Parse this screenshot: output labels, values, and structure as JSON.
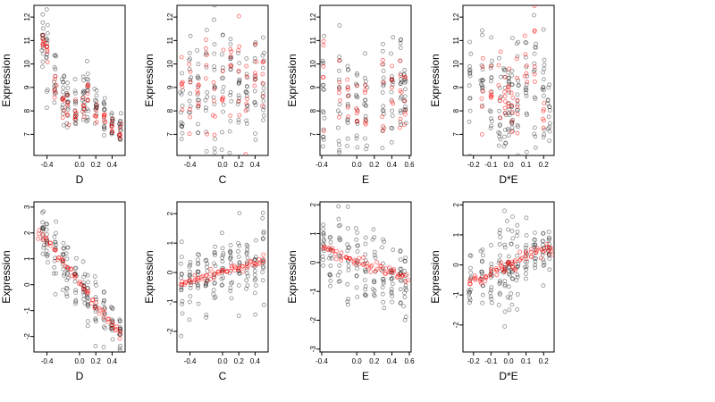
{
  "chart_data": [
    {
      "type": "scatter",
      "xlabel": "D",
      "ylabel": "Expression",
      "xlim": [
        -0.56,
        0.56
      ],
      "ylim": [
        6.1,
        12.5
      ],
      "xticks": [
        -0.4,
        0.0,
        0.2,
        0.4
      ],
      "yticks": [
        7,
        8,
        9,
        10,
        11,
        12
      ],
      "observed": {
        "x_groups": [
          -0.45,
          -0.4,
          -0.3,
          -0.2,
          -0.15,
          -0.05,
          0.05,
          0.1,
          0.2,
          0.3,
          0.4,
          0.5
        ],
        "y_means": [
          11.0,
          10.5,
          9.3,
          8.6,
          8.2,
          8.1,
          8.3,
          8.6,
          8.3,
          7.8,
          7.5,
          7.3
        ],
        "y_sd": [
          0.8,
          0.9,
          0.7,
          0.6,
          0.6,
          0.5,
          0.6,
          0.7,
          0.6,
          0.5,
          0.4,
          0.4
        ],
        "n_per_group": 14
      },
      "fitted": {
        "x_groups": [
          -0.45,
          -0.4,
          -0.3,
          -0.2,
          -0.15,
          -0.05,
          0.05,
          0.1,
          0.2,
          0.3,
          0.4,
          0.5
        ],
        "y_means": [
          11.0,
          10.6,
          9.2,
          8.4,
          8.0,
          7.8,
          8.2,
          8.8,
          8.0,
          7.6,
          7.3,
          7.1
        ],
        "y_sd": [
          0.25,
          0.25,
          0.3,
          0.3,
          0.3,
          0.3,
          0.3,
          0.35,
          0.3,
          0.25,
          0.2,
          0.2
        ],
        "n_per_group": 6
      }
    },
    {
      "type": "scatter",
      "xlabel": "C",
      "ylabel": "Expression",
      "xlim": [
        -0.56,
        0.56
      ],
      "ylim": [
        6.1,
        12.5
      ],
      "xticks": [
        -0.4,
        0.0,
        0.2,
        0.4
      ],
      "yticks": [
        7,
        8,
        9,
        10,
        11,
        12
      ],
      "observed": {
        "x_groups": [
          -0.5,
          -0.4,
          -0.3,
          -0.2,
          -0.1,
          0.0,
          0.1,
          0.2,
          0.3,
          0.4,
          0.5
        ],
        "y_means": [
          8.5,
          8.4,
          8.8,
          8.6,
          9.0,
          8.7,
          8.8,
          9.2,
          8.9,
          9.1,
          8.6
        ],
        "y_sd": [
          1.2,
          1.2,
          1.4,
          1.3,
          1.5,
          1.3,
          1.4,
          1.5,
          1.3,
          1.4,
          1.2
        ],
        "n_per_group": 14
      },
      "fitted": {
        "x_groups": [
          -0.5,
          -0.4,
          -0.3,
          -0.2,
          -0.1,
          0.0,
          0.1,
          0.2,
          0.3,
          0.4,
          0.5
        ],
        "y_means": [
          8.4,
          8.5,
          8.6,
          8.7,
          8.8,
          8.9,
          9.0,
          9.1,
          9.2,
          9.3,
          9.4
        ],
        "y_sd": [
          1.0,
          1.0,
          1.1,
          1.1,
          1.1,
          1.2,
          1.2,
          1.2,
          1.2,
          1.2,
          1.2
        ],
        "n_per_group": 6
      }
    },
    {
      "type": "scatter",
      "xlabel": "E",
      "ylabel": "Expression",
      "xlim": [
        -0.42,
        0.62
      ],
      "ylim": [
        6.1,
        12.5
      ],
      "xticks": [
        -0.4,
        0.0,
        0.2,
        0.4,
        0.6
      ],
      "yticks": [
        7,
        8,
        9,
        10,
        11,
        12
      ],
      "observed": {
        "x_groups": [
          -0.38,
          -0.2,
          -0.1,
          0.0,
          0.1,
          0.3,
          0.4,
          0.5,
          0.55
        ],
        "y_means": [
          8.7,
          8.3,
          8.1,
          8.0,
          8.2,
          8.6,
          8.7,
          8.9,
          8.4
        ],
        "y_sd": [
          1.3,
          1.4,
          1.2,
          1.0,
          1.0,
          1.3,
          1.2,
          1.3,
          1.0
        ],
        "n_per_group": 16
      },
      "fitted": {
        "x_groups": [
          -0.38,
          -0.2,
          -0.1,
          0.0,
          0.1,
          0.3,
          0.4,
          0.5,
          0.55
        ],
        "y_means": [
          9.5,
          9.0,
          8.4,
          8.0,
          8.2,
          8.8,
          9.0,
          9.2,
          8.6
        ],
        "y_sd": [
          1.3,
          1.3,
          1.1,
          0.8,
          0.9,
          1.1,
          1.1,
          1.2,
          0.9
        ],
        "n_per_group": 6
      }
    },
    {
      "type": "scatter",
      "xlabel": "D*E",
      "ylabel": "Expression",
      "xlim": [
        -0.26,
        0.26
      ],
      "ylim": [
        6.1,
        12.5
      ],
      "xticks": [
        -0.2,
        -0.1,
        0.0,
        0.1,
        0.2
      ],
      "yticks": [
        7,
        8,
        9,
        10,
        11,
        12
      ],
      "observed": {
        "x_groups": [
          -0.22,
          -0.15,
          -0.1,
          -0.05,
          -0.02,
          0.0,
          0.02,
          0.05,
          0.1,
          0.15,
          0.2,
          0.23
        ],
        "y_means": [
          9.5,
          9.0,
          8.8,
          8.5,
          8.4,
          8.2,
          8.3,
          8.6,
          8.8,
          9.2,
          9.0,
          8.0
        ],
        "y_sd": [
          1.2,
          1.3,
          1.3,
          1.2,
          1.3,
          1.1,
          1.2,
          1.3,
          1.4,
          1.5,
          1.4,
          0.8
        ],
        "n_per_group": 14
      },
      "fitted": {
        "x_groups": [
          -0.15,
          -0.1,
          -0.05,
          -0.02,
          0.0,
          0.02,
          0.05,
          0.1,
          0.15,
          0.2
        ],
        "y_means": [
          9.0,
          8.9,
          8.7,
          8.6,
          8.3,
          8.1,
          8.6,
          9.3,
          10.0,
          7.6
        ],
        "y_sd": [
          0.9,
          1.0,
          0.9,
          0.8,
          0.7,
          0.7,
          1.0,
          1.3,
          1.3,
          0.4
        ],
        "n_per_group": 6
      }
    },
    {
      "type": "scatter",
      "xlabel": "D",
      "ylabel": "Expression",
      "xlim": [
        -0.56,
        0.56
      ],
      "ylim": [
        -2.6,
        3.2
      ],
      "xticks": [
        -0.4,
        0.0,
        0.2,
        0.4
      ],
      "yticks": [
        -2,
        -1,
        0,
        1,
        2,
        3
      ],
      "observed": {
        "x_groups": [
          -0.45,
          -0.4,
          -0.3,
          -0.2,
          -0.15,
          -0.05,
          0.05,
          0.1,
          0.2,
          0.3,
          0.4,
          0.5
        ],
        "y_means": [
          2.0,
          1.7,
          1.2,
          0.9,
          0.6,
          0.2,
          -0.2,
          -0.4,
          -0.8,
          -1.1,
          -1.5,
          -1.9
        ],
        "y_sd": [
          0.5,
          0.6,
          0.6,
          0.5,
          0.5,
          0.5,
          0.5,
          0.5,
          0.5,
          0.5,
          0.4,
          0.4
        ],
        "n_per_group": 14
      },
      "fitted": {
        "x_groups": [
          -0.5,
          -0.45,
          -0.4,
          -0.35,
          -0.3,
          -0.25,
          -0.2,
          -0.15,
          -0.1,
          -0.05,
          0.0,
          0.05,
          0.1,
          0.15,
          0.2,
          0.25,
          0.3,
          0.35,
          0.4,
          0.45,
          0.5
        ],
        "y_means": [
          2.0,
          1.85,
          1.65,
          1.5,
          1.3,
          1.1,
          0.9,
          0.7,
          0.5,
          0.3,
          0.1,
          -0.15,
          -0.35,
          -0.55,
          -0.75,
          -0.95,
          -1.15,
          -1.35,
          -1.55,
          -1.75,
          -1.95
        ],
        "y_sd": [
          0.08,
          0.08,
          0.08,
          0.08,
          0.08,
          0.08,
          0.08,
          0.08,
          0.08,
          0.08,
          0.08,
          0.08,
          0.08,
          0.08,
          0.08,
          0.08,
          0.08,
          0.08,
          0.08,
          0.08,
          0.08
        ],
        "n_per_group": 3
      }
    },
    {
      "type": "scatter",
      "xlabel": "C",
      "ylabel": "Expression",
      "xlim": [
        -0.56,
        0.56
      ],
      "ylim": [
        -2.7,
        2.4
      ],
      "xticks": [
        -0.4,
        0.0,
        0.2,
        0.4
      ],
      "yticks": [
        -2,
        -1,
        0,
        1,
        2
      ],
      "observed": {
        "x_groups": [
          -0.5,
          -0.4,
          -0.3,
          -0.2,
          -0.1,
          0.0,
          0.1,
          0.2,
          0.3,
          0.4,
          0.5
        ],
        "y_means": [
          -0.4,
          -0.3,
          -0.2,
          -0.1,
          0.0,
          0.0,
          0.1,
          0.2,
          0.3,
          0.3,
          0.4
        ],
        "y_sd": [
          0.6,
          0.6,
          0.6,
          0.6,
          0.6,
          0.6,
          0.6,
          0.7,
          0.6,
          0.7,
          0.6
        ],
        "n_per_group": 14
      },
      "fitted": {
        "x_groups": [
          -0.5,
          -0.45,
          -0.4,
          -0.35,
          -0.3,
          -0.25,
          -0.2,
          -0.15,
          -0.1,
          -0.05,
          0.0,
          0.05,
          0.1,
          0.15,
          0.2,
          0.25,
          0.3,
          0.35,
          0.4,
          0.45,
          0.5
        ],
        "y_means": [
          -0.4,
          -0.36,
          -0.32,
          -0.28,
          -0.24,
          -0.2,
          -0.16,
          -0.12,
          -0.08,
          -0.04,
          0.0,
          0.04,
          0.08,
          0.12,
          0.16,
          0.2,
          0.24,
          0.28,
          0.32,
          0.36,
          0.4
        ],
        "y_sd": [
          0.08,
          0.08,
          0.08,
          0.08,
          0.08,
          0.08,
          0.08,
          0.08,
          0.08,
          0.08,
          0.08,
          0.08,
          0.08,
          0.08,
          0.08,
          0.08,
          0.08,
          0.08,
          0.08,
          0.08,
          0.08
        ],
        "n_per_group": 3
      }
    },
    {
      "type": "scatter",
      "xlabel": "E",
      "ylabel": "Expression",
      "xlim": [
        -0.42,
        0.62
      ],
      "ylim": [
        -3.1,
        2.1
      ],
      "xticks": [
        -0.4,
        0.0,
        0.2,
        0.4,
        0.6
      ],
      "yticks": [
        -3,
        -2,
        -1,
        0,
        1,
        2
      ],
      "observed": {
        "x_groups": [
          -0.38,
          -0.3,
          -0.2,
          -0.1,
          0.0,
          0.1,
          0.2,
          0.3,
          0.4,
          0.5,
          0.55
        ],
        "y_means": [
          0.4,
          0.3,
          0.2,
          0.1,
          0.0,
          -0.1,
          -0.1,
          -0.3,
          -0.4,
          -0.5,
          -0.6
        ],
        "y_sd": [
          0.7,
          0.8,
          0.7,
          0.7,
          0.7,
          0.7,
          0.7,
          0.7,
          0.7,
          0.6,
          0.6
        ],
        "n_per_group": 14
      },
      "fitted": {
        "x_groups": [
          -0.38,
          -0.33,
          -0.28,
          -0.23,
          -0.18,
          -0.13,
          -0.08,
          -0.03,
          0.02,
          0.07,
          0.12,
          0.17,
          0.22,
          0.27,
          0.32,
          0.37,
          0.42,
          0.47,
          0.52,
          0.57
        ],
        "y_means": [
          0.45,
          0.39,
          0.34,
          0.29,
          0.23,
          0.18,
          0.13,
          0.07,
          0.02,
          -0.04,
          -0.09,
          -0.14,
          -0.2,
          -0.25,
          -0.3,
          -0.36,
          -0.41,
          -0.46,
          -0.52,
          -0.57
        ],
        "y_sd": [
          0.1,
          0.1,
          0.1,
          0.1,
          0.1,
          0.1,
          0.1,
          0.1,
          0.1,
          0.1,
          0.1,
          0.1,
          0.1,
          0.1,
          0.1,
          0.1,
          0.1,
          0.1,
          0.1,
          0.1
        ],
        "n_per_group": 3
      }
    },
    {
      "type": "scatter",
      "xlabel": "D*E",
      "ylabel": "Expression",
      "xlim": [
        -0.26,
        0.26
      ],
      "ylim": [
        -2.9,
        2.1
      ],
      "xticks": [
        -0.2,
        -0.1,
        0.0,
        0.1,
        0.2
      ],
      "yticks": [
        -2,
        -1,
        0,
        1,
        2
      ],
      "observed": {
        "x_groups": [
          -0.22,
          -0.15,
          -0.1,
          -0.05,
          -0.02,
          0.0,
          0.02,
          0.05,
          0.1,
          0.15,
          0.2,
          0.23
        ],
        "y_means": [
          -0.7,
          -0.5,
          -0.3,
          -0.2,
          -0.1,
          0.0,
          0.1,
          0.2,
          0.3,
          0.4,
          0.5,
          0.6
        ],
        "y_sd": [
          0.5,
          0.6,
          0.7,
          0.8,
          0.9,
          0.8,
          0.8,
          0.7,
          0.6,
          0.5,
          0.5,
          0.4
        ],
        "n_per_group": 14
      },
      "fitted": {
        "x_groups": [
          -0.22,
          -0.19,
          -0.16,
          -0.13,
          -0.1,
          -0.07,
          -0.04,
          -0.02,
          0.0,
          0.02,
          0.04,
          0.07,
          0.1,
          0.13,
          0.16,
          0.19,
          0.22,
          0.24
        ],
        "y_means": [
          -0.55,
          -0.48,
          -0.41,
          -0.34,
          -0.27,
          -0.2,
          -0.12,
          -0.06,
          0.0,
          0.06,
          0.12,
          0.2,
          0.27,
          0.34,
          0.41,
          0.48,
          0.55,
          0.6
        ],
        "y_sd": [
          0.12,
          0.12,
          0.12,
          0.12,
          0.12,
          0.12,
          0.12,
          0.12,
          0.12,
          0.12,
          0.12,
          0.12,
          0.12,
          0.12,
          0.12,
          0.12,
          0.12,
          0.12
        ],
        "n_per_group": 4
      }
    }
  ]
}
